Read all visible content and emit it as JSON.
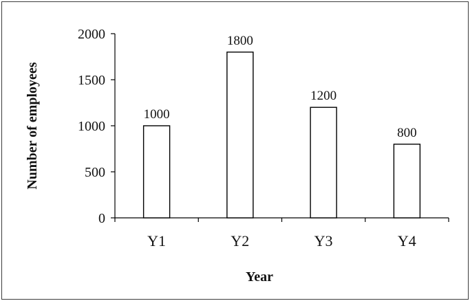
{
  "chart_data": {
    "type": "bar",
    "title": "",
    "xlabel": "Year",
    "ylabel": "Number of employees",
    "categories": [
      "Y1",
      "Y2",
      "Y3",
      "Y4"
    ],
    "values": [
      1000,
      1800,
      1200,
      800
    ],
    "data_labels": [
      "1000",
      "1800",
      "1200",
      "800"
    ],
    "ylim": [
      0,
      2000
    ],
    "yticks": [
      0,
      500,
      1000,
      1500,
      2000
    ],
    "grid": false,
    "legend": "none",
    "colors": {
      "bar_fill": "#ffffff",
      "bar_stroke": "#000000",
      "axis": "#000000"
    }
  }
}
